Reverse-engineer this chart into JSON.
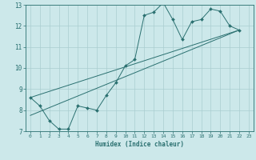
{
  "xlabel": "Humidex (Indice chaleur)",
  "xlim": [
    -0.5,
    23.5
  ],
  "ylim": [
    7,
    13
  ],
  "xticks": [
    0,
    1,
    2,
    3,
    4,
    5,
    6,
    7,
    8,
    9,
    10,
    11,
    12,
    13,
    14,
    15,
    16,
    17,
    18,
    19,
    20,
    21,
    22,
    23
  ],
  "yticks": [
    7,
    8,
    9,
    10,
    11,
    12,
    13
  ],
  "bg_color": "#cce8ea",
  "grid_color": "#aacdd0",
  "line_color": "#2a7070",
  "line1_x": [
    0,
    1,
    2,
    3,
    4,
    5,
    6,
    7,
    8,
    9,
    10,
    11,
    12,
    13,
    14,
    15,
    16,
    17,
    18,
    19,
    20,
    21,
    22
  ],
  "line1_y": [
    8.6,
    8.2,
    7.5,
    7.1,
    7.1,
    8.2,
    8.1,
    8.0,
    8.7,
    9.3,
    10.1,
    10.4,
    12.5,
    12.65,
    13.1,
    12.3,
    11.35,
    12.2,
    12.3,
    12.8,
    12.7,
    12.0,
    11.8
  ],
  "line2_x": [
    0,
    22
  ],
  "line2_y": [
    8.6,
    11.8
  ],
  "line3_x": [
    0,
    22
  ],
  "line3_y": [
    7.75,
    11.8
  ]
}
